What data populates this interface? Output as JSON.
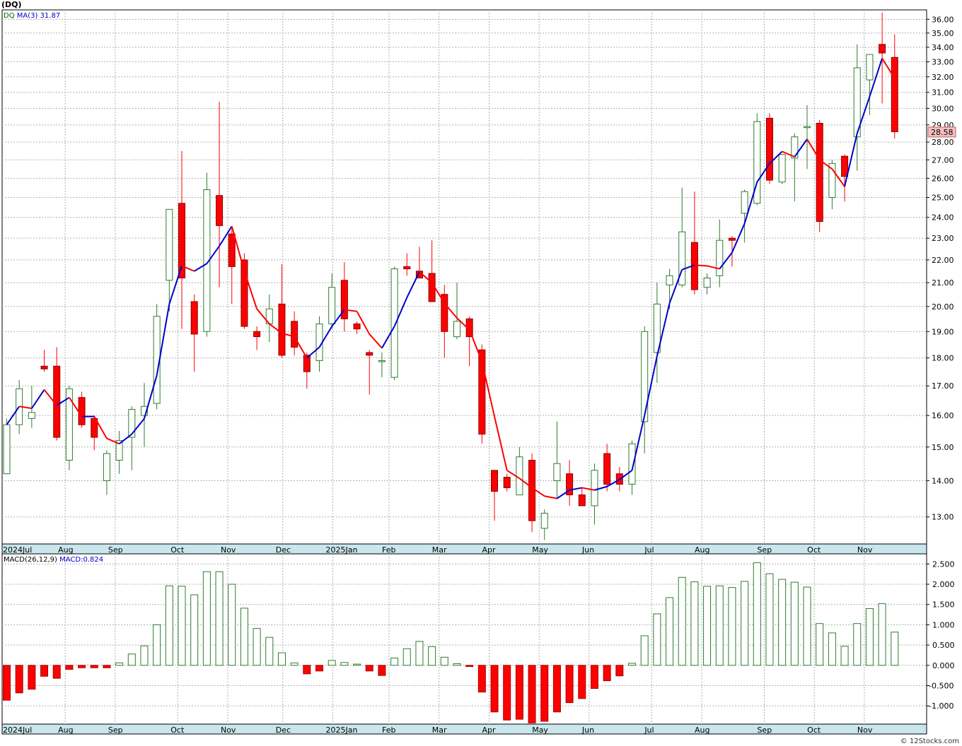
{
  "title": "(DQ)",
  "watermark": "© 12Stocks.com",
  "price_panel": {
    "legend_symbol": "DQ",
    "legend_ma": "MA(3)",
    "legend_ma_value": "31.87",
    "last_price": "28.58",
    "y_ticks": [
      "13.00",
      "14.00",
      "15.00",
      "16.00",
      "17.00",
      "18.00",
      "19.00",
      "20.00",
      "21.00",
      "22.00",
      "23.00",
      "24.00",
      "25.00",
      "26.00",
      "27.00",
      "28.00",
      "29.00",
      "30.00",
      "31.00",
      "32.00",
      "33.00",
      "34.00",
      "35.00",
      "36.00"
    ]
  },
  "macd_panel": {
    "legend_label": "MACD(26,12,9)",
    "legend_value": "MACD:0.824",
    "y_ticks": [
      "2.500",
      "2.000",
      "1.500",
      "1.000",
      "0.500",
      "0.000",
      "-0.500",
      "-1.000"
    ]
  },
  "x_axis_labels": [
    "2024Jul",
    "Aug",
    "Sep",
    "Oct",
    "Nov",
    "Dec",
    "2025Jan",
    "Feb",
    "Mar",
    "Apr",
    "May",
    "Jun",
    "Jul",
    "Aug",
    "Sep",
    "Oct",
    "Nov"
  ],
  "colors": {
    "up": "#2e7d2e",
    "down": "#ff0000",
    "ma_up": "#0000cc",
    "ma_down": "#ff0000",
    "grid": "#b0b0b0",
    "axis_strip": "#c8e6ec",
    "last_price_bg": "#f4c0c0"
  },
  "chart_data": [
    {
      "type": "candlestick",
      "title": "(DQ)",
      "ylim": [
        12.3,
        36.7
      ],
      "log_scale": true,
      "grid": true,
      "ma_period": 3,
      "series": [
        {
          "o": 14.2,
          "h": 15.9,
          "l": 14.2,
          "c": 15.7
        },
        {
          "o": 15.7,
          "h": 17.2,
          "l": 15.4,
          "c": 16.9
        },
        {
          "o": 15.9,
          "h": 17.0,
          "l": 15.6,
          "c": 16.1
        },
        {
          "o": 17.7,
          "h": 18.3,
          "l": 17.5,
          "c": 17.6
        },
        {
          "o": 17.7,
          "h": 18.4,
          "l": 15.2,
          "c": 15.3
        },
        {
          "o": 14.6,
          "h": 17.0,
          "l": 14.3,
          "c": 16.9
        },
        {
          "o": 16.6,
          "h": 16.8,
          "l": 15.6,
          "c": 15.7
        },
        {
          "o": 15.9,
          "h": 16.0,
          "l": 14.9,
          "c": 15.3
        },
        {
          "o": 14.0,
          "h": 14.9,
          "l": 13.6,
          "c": 14.8
        },
        {
          "o": 14.6,
          "h": 15.5,
          "l": 14.2,
          "c": 15.2
        },
        {
          "o": 15.3,
          "h": 16.3,
          "l": 14.3,
          "c": 16.2
        },
        {
          "o": 16.0,
          "h": 17.1,
          "l": 15.0,
          "c": 16.3
        },
        {
          "o": 16.4,
          "h": 20.1,
          "l": 16.2,
          "c": 19.6
        },
        {
          "o": 21.1,
          "h": 24.4,
          "l": 19.8,
          "c": 24.4
        },
        {
          "o": 24.7,
          "h": 27.5,
          "l": 19.1,
          "c": 21.2
        },
        {
          "o": 20.2,
          "h": 20.5,
          "l": 17.5,
          "c": 18.9
        },
        {
          "o": 19.0,
          "h": 26.3,
          "l": 18.8,
          "c": 25.4
        },
        {
          "o": 25.1,
          "h": 30.4,
          "l": 20.8,
          "c": 23.6
        },
        {
          "o": 23.2,
          "h": 23.5,
          "l": 20.1,
          "c": 21.7
        },
        {
          "o": 22.0,
          "h": 22.3,
          "l": 19.1,
          "c": 19.2
        },
        {
          "o": 19.0,
          "h": 19.2,
          "l": 18.3,
          "c": 18.8
        },
        {
          "o": 19.3,
          "h": 20.5,
          "l": 18.6,
          "c": 19.9
        },
        {
          "o": 20.1,
          "h": 21.8,
          "l": 18.0,
          "c": 18.1
        },
        {
          "o": 19.4,
          "h": 19.8,
          "l": 18.1,
          "c": 18.4
        },
        {
          "o": 18.1,
          "h": 18.2,
          "l": 16.9,
          "c": 17.5
        },
        {
          "o": 17.9,
          "h": 19.6,
          "l": 17.5,
          "c": 19.3
        },
        {
          "o": 19.3,
          "h": 21.4,
          "l": 19.1,
          "c": 20.8
        },
        {
          "o": 21.1,
          "h": 21.9,
          "l": 19.0,
          "c": 19.5
        },
        {
          "o": 19.3,
          "h": 19.4,
          "l": 18.9,
          "c": 19.1
        },
        {
          "o": 18.2,
          "h": 18.3,
          "l": 16.7,
          "c": 18.1
        },
        {
          "o": 17.9,
          "h": 18.2,
          "l": 17.3,
          "c": 17.9
        },
        {
          "o": 17.3,
          "h": 21.7,
          "l": 17.2,
          "c": 21.6
        },
        {
          "o": 21.7,
          "h": 22.3,
          "l": 21.3,
          "c": 21.6
        },
        {
          "o": 21.5,
          "h": 22.6,
          "l": 21.4,
          "c": 21.2
        },
        {
          "o": 21.4,
          "h": 22.9,
          "l": 20.2,
          "c": 20.2
        },
        {
          "o": 20.5,
          "h": 20.9,
          "l": 18.0,
          "c": 19.0
        },
        {
          "o": 18.8,
          "h": 21.0,
          "l": 18.7,
          "c": 19.4
        },
        {
          "o": 19.5,
          "h": 19.6,
          "l": 17.7,
          "c": 18.8
        },
        {
          "o": 18.3,
          "h": 18.5,
          "l": 15.1,
          "c": 15.4
        },
        {
          "o": 14.3,
          "h": 14.3,
          "l": 12.9,
          "c": 13.7
        },
        {
          "o": 14.1,
          "h": 14.2,
          "l": 13.7,
          "c": 13.8
        },
        {
          "o": 13.6,
          "h": 15.0,
          "l": 13.6,
          "c": 14.7
        },
        {
          "o": 14.6,
          "h": 14.8,
          "l": 12.6,
          "c": 12.9
        },
        {
          "o": 12.7,
          "h": 13.2,
          "l": 12.4,
          "c": 13.1
        },
        {
          "o": 14.0,
          "h": 15.8,
          "l": 13.5,
          "c": 14.5
        },
        {
          "o": 14.2,
          "h": 14.6,
          "l": 13.3,
          "c": 13.6
        },
        {
          "o": 13.6,
          "h": 13.8,
          "l": 13.3,
          "c": 13.3
        },
        {
          "o": 13.3,
          "h": 14.5,
          "l": 12.8,
          "c": 14.3
        },
        {
          "o": 14.8,
          "h": 15.1,
          "l": 13.7,
          "c": 13.9
        },
        {
          "o": 14.2,
          "h": 14.4,
          "l": 13.7,
          "c": 13.9
        },
        {
          "o": 13.9,
          "h": 15.2,
          "l": 13.6,
          "c": 15.1
        },
        {
          "o": 15.8,
          "h": 19.2,
          "l": 14.8,
          "c": 19.0
        },
        {
          "o": 18.2,
          "h": 21.0,
          "l": 17.1,
          "c": 20.1
        },
        {
          "o": 20.9,
          "h": 21.6,
          "l": 19.9,
          "c": 21.3
        },
        {
          "o": 20.9,
          "h": 25.5,
          "l": 20.8,
          "c": 23.3
        },
        {
          "o": 22.8,
          "h": 25.3,
          "l": 20.5,
          "c": 20.7
        },
        {
          "o": 20.8,
          "h": 21.4,
          "l": 20.5,
          "c": 21.2
        },
        {
          "o": 21.3,
          "h": 23.9,
          "l": 20.8,
          "c": 22.9
        },
        {
          "o": 23.0,
          "h": 23.1,
          "l": 21.7,
          "c": 22.9
        },
        {
          "o": 24.2,
          "h": 25.4,
          "l": 22.8,
          "c": 25.3
        },
        {
          "o": 24.7,
          "h": 29.7,
          "l": 24.6,
          "c": 29.2
        },
        {
          "o": 29.4,
          "h": 29.7,
          "l": 25.7,
          "c": 25.9
        },
        {
          "o": 25.8,
          "h": 27.2,
          "l": 25.7,
          "c": 27.3
        },
        {
          "o": 27.1,
          "h": 28.5,
          "l": 24.8,
          "c": 28.3
        },
        {
          "o": 28.9,
          "h": 30.2,
          "l": 26.5,
          "c": 28.9
        },
        {
          "o": 29.1,
          "h": 29.3,
          "l": 23.3,
          "c": 23.8
        },
        {
          "o": 25.0,
          "h": 27.0,
          "l": 24.4,
          "c": 26.8
        },
        {
          "o": 27.2,
          "h": 27.3,
          "l": 24.8,
          "c": 26.1
        },
        {
          "o": 28.3,
          "h": 34.2,
          "l": 26.4,
          "c": 32.6
        },
        {
          "o": 31.8,
          "h": 33.5,
          "l": 29.6,
          "c": 33.5
        },
        {
          "o": 34.2,
          "h": 36.5,
          "l": 30.3,
          "c": 33.6
        },
        {
          "o": 33.3,
          "h": 34.9,
          "l": 28.2,
          "c": 28.6
        }
      ]
    },
    {
      "type": "bar",
      "title": "MACD(26,12,9)",
      "ylim": [
        -1.45,
        2.75
      ],
      "values": [
        -0.86,
        -0.68,
        -0.59,
        -0.27,
        -0.32,
        -0.1,
        -0.06,
        -0.06,
        -0.06,
        0.06,
        0.28,
        0.48,
        1.0,
        1.96,
        1.95,
        1.74,
        2.31,
        2.31,
        2.0,
        1.41,
        0.91,
        0.69,
        0.31,
        0.06,
        -0.21,
        -0.14,
        0.12,
        0.07,
        0.03,
        -0.14,
        -0.25,
        0.18,
        0.41,
        0.59,
        0.46,
        0.2,
        0.04,
        -0.03,
        -0.66,
        -1.15,
        -1.35,
        -1.33,
        -1.42,
        -1.38,
        -1.15,
        -0.92,
        -0.82,
        -0.57,
        -0.38,
        -0.26,
        0.05,
        0.73,
        1.27,
        1.67,
        2.17,
        2.06,
        1.95,
        1.96,
        1.92,
        2.07,
        2.53,
        2.26,
        2.12,
        2.05,
        1.93,
        1.03,
        0.8,
        0.47,
        1.03,
        1.4,
        1.52,
        0.82
      ]
    }
  ]
}
